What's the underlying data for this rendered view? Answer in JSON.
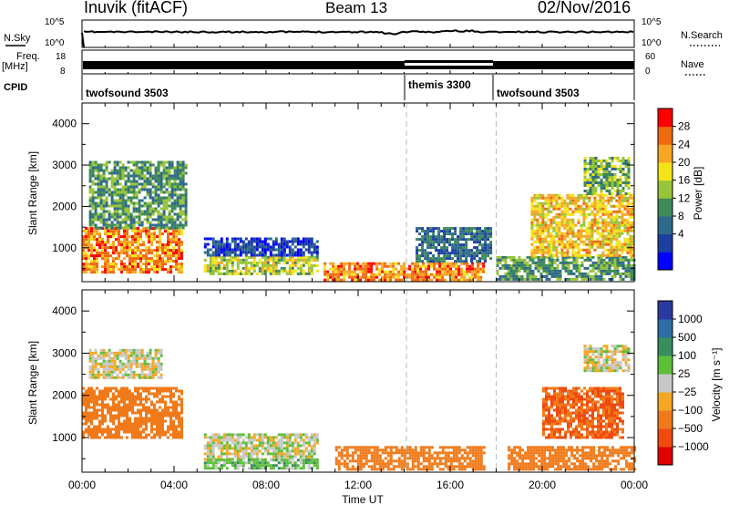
{
  "header": {
    "station": "Inuvik (fitACF)",
    "beam": "Beam 13",
    "date": "02/Nov/2016"
  },
  "status_panel": {
    "nsky_label": "N.Sky",
    "nsky_ticks": [
      "10^5",
      "10^0"
    ],
    "nsearch_label": "N.Search",
    "nsearch_ticks": [
      "10^5",
      "10^0"
    ],
    "freq_label": "Freq.",
    "freq_unit": "[MHz]",
    "freq_ticks": [
      "18",
      "8"
    ],
    "nave_label": "Nave",
    "nave_ticks": [
      "60",
      "0"
    ],
    "cpid_label": "CPID",
    "cpid_segments": [
      {
        "label": "twofsound 3503",
        "start_hour": 0,
        "end_hour": 14.1
      },
      {
        "label": "themis 3300",
        "start_hour": 14.1,
        "end_hour": 18.0
      },
      {
        "label": "twofsound 3503",
        "start_hour": 18.0,
        "end_hour": 24
      }
    ]
  },
  "panels": {
    "power": {
      "colorbar_label": "Power [dB]",
      "colorbar_ticks": [
        "28",
        "24",
        "20",
        "16",
        "12",
        "8",
        "4"
      ],
      "colors": [
        "#0000ff",
        "#1c3fa0",
        "#2e6a8a",
        "#3f8a58",
        "#98c43a",
        "#f5e31a",
        "#f5a623",
        "#f06a10",
        "#ff0000"
      ]
    },
    "velocity": {
      "colorbar_label": "Velocity [m s⁻¹]",
      "colorbar_ticks": [
        "1000",
        "500",
        "100",
        "25",
        "−25",
        "−100",
        "−500",
        "−1000"
      ],
      "colors": [
        "#2a3a9f",
        "#2f6ea5",
        "#3a8e5e",
        "#5cbf3a",
        "#c8c8c8",
        "#f5a623",
        "#f07a1a",
        "#f04a10",
        "#e00000"
      ]
    }
  },
  "axes": {
    "xlabel": "Time UT",
    "ylabel": "Slant Range [km]",
    "xticks": [
      "00:00",
      "04:00",
      "08:00",
      "12:00",
      "16:00",
      "20:00",
      "00:00"
    ],
    "yticks": [
      "1000",
      "2000",
      "3000",
      "4000"
    ],
    "xlim_hours": [
      0,
      24
    ],
    "ylim_km": [
      180,
      4500
    ]
  },
  "chart_data": {
    "type": "heatmap",
    "x_unit": "hours UT",
    "y_unit": "km",
    "mode_change_hours": [
      14.1,
      18.0
    ],
    "power_regions": [
      {
        "t0": 0.0,
        "t1": 4.3,
        "r0": 400,
        "r1": 1500,
        "level": 28
      },
      {
        "t0": 0.3,
        "t1": 4.5,
        "r0": 1500,
        "r1": 3100,
        "level": 14
      },
      {
        "t0": 5.3,
        "t1": 10.2,
        "r0": 350,
        "r1": 800,
        "level": 20
      },
      {
        "t0": 5.3,
        "t1": 10.2,
        "r0": 800,
        "r1": 1250,
        "level": 6
      },
      {
        "t0": 10.5,
        "t1": 17.5,
        "r0": 250,
        "r1": 650,
        "level": 28
      },
      {
        "t0": 14.5,
        "t1": 17.8,
        "r0": 700,
        "r1": 1500,
        "level": 10
      },
      {
        "t0": 18.0,
        "t1": 24.0,
        "r0": 250,
        "r1": 800,
        "level": 14
      },
      {
        "t0": 19.5,
        "t1": 24.0,
        "r0": 800,
        "r1": 2300,
        "level": 24
      },
      {
        "t0": 21.8,
        "t1": 23.8,
        "r0": 2300,
        "r1": 3200,
        "level": 16
      }
    ],
    "velocity_regions": [
      {
        "t0": 0.0,
        "t1": 4.3,
        "r0": 1000,
        "r1": 2200,
        "level": -300
      },
      {
        "t0": 0.3,
        "t1": 3.5,
        "r0": 2400,
        "r1": 3100,
        "level": -10
      },
      {
        "t0": 5.3,
        "t1": 10.2,
        "r0": 500,
        "r1": 1100,
        "level": 0
      },
      {
        "t0": 5.3,
        "t1": 10.2,
        "r0": 250,
        "r1": 500,
        "level": 60
      },
      {
        "t0": 11.0,
        "t1": 17.5,
        "r0": 250,
        "r1": 800,
        "level": -300
      },
      {
        "t0": 18.5,
        "t1": 24.0,
        "r0": 250,
        "r1": 800,
        "level": -300
      },
      {
        "t0": 20.0,
        "t1": 23.5,
        "r0": 1000,
        "r1": 2200,
        "level": -500
      },
      {
        "t0": 21.8,
        "t1": 23.8,
        "r0": 2600,
        "r1": 3200,
        "level": -10
      }
    ]
  }
}
